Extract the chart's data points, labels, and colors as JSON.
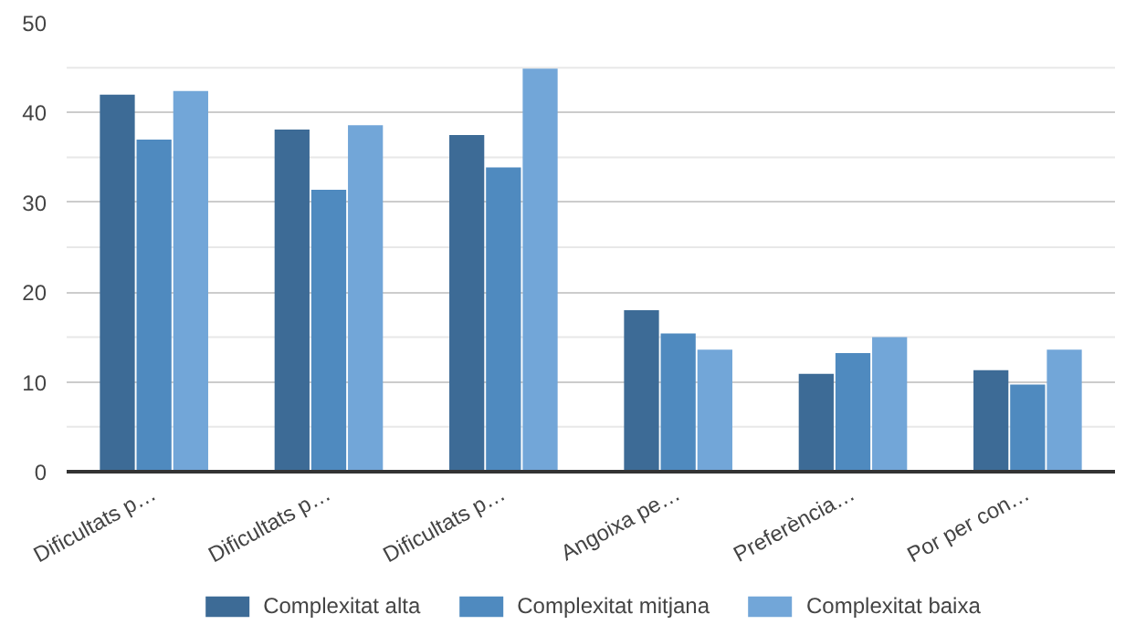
{
  "chart_data": {
    "type": "bar",
    "categories": [
      "Dificultats p…",
      "Dificultats p…",
      "Dificultats p…",
      "Angoixa pe…",
      "Preferència…",
      "Por per con…"
    ],
    "series": [
      {
        "name": "Complexitat alta",
        "color": "#3d6b96",
        "values": [
          42,
          38.1,
          37.5,
          18,
          10.9,
          11.3
        ]
      },
      {
        "name": "Complexitat mitjana",
        "color": "#4f8abf",
        "values": [
          37,
          31.4,
          33.9,
          15.4,
          13.2,
          9.7
        ]
      },
      {
        "name": "Complexitat baixa",
        "color": "#72a6d8",
        "values": [
          42.4,
          38.6,
          44.9,
          13.6,
          15,
          13.6
        ]
      }
    ],
    "ylim": [
      0,
      50
    ],
    "yticks": [
      0,
      {
        "value": 5,
        "label": null
      },
      10,
      {
        "value": 15,
        "label": null
      },
      20,
      {
        "value": 25,
        "label": null
      },
      30,
      {
        "value": 35,
        "label": null
      },
      40,
      {
        "value": 45,
        "label": null
      },
      50
    ],
    "grid": "y",
    "legend": "bottom"
  }
}
